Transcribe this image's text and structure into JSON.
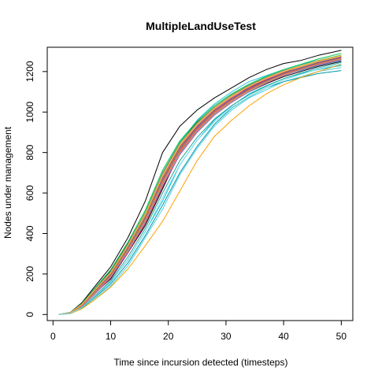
{
  "chart_data": {
    "type": "line",
    "title": "MultipleLandUseTest",
    "xlabel": "Time since incursion detected (timesteps)",
    "ylabel": "Nodes under management",
    "xlim": [
      -1,
      52
    ],
    "ylim": [
      -30,
      1320
    ],
    "x_ticks": [
      0,
      10,
      20,
      30,
      40,
      50
    ],
    "y_ticks": [
      0,
      200,
      400,
      600,
      800,
      1000,
      1200
    ],
    "x_tick_labels": [
      "0",
      "10",
      "20",
      "30",
      "40",
      "50"
    ],
    "y_tick_labels": [
      "0",
      "200",
      "400",
      "600",
      "800",
      "1000",
      "1200"
    ],
    "grid": false,
    "legend": "none",
    "x": [
      1,
      3,
      5,
      7,
      10,
      13,
      16,
      19,
      22,
      25,
      28,
      31,
      34,
      37,
      40,
      43,
      46,
      50
    ],
    "series": [
      {
        "color": "#000000",
        "values": [
          0,
          8,
          50,
          105,
          195,
          330,
          480,
          680,
          850,
          950,
          1020,
          1080,
          1120,
          1165,
          1200,
          1215,
          1235,
          1260
        ]
      },
      {
        "color": "#000000",
        "values": [
          0,
          9,
          55,
          120,
          215,
          350,
          500,
          690,
          840,
          930,
          1000,
          1060,
          1110,
          1150,
          1185,
          1215,
          1245,
          1275
        ]
      },
      {
        "color": "#000000",
        "values": [
          0,
          10,
          58,
          130,
          235,
          380,
          560,
          800,
          930,
          1010,
          1070,
          1120,
          1170,
          1210,
          1240,
          1255,
          1280,
          1305
        ]
      },
      {
        "color": "#000000",
        "values": [
          0,
          6,
          42,
          100,
          175,
          305,
          440,
          620,
          800,
          910,
          990,
          1050,
          1100,
          1140,
          1175,
          1200,
          1225,
          1250
        ]
      },
      {
        "color": "#00bcd4",
        "values": [
          0,
          5,
          35,
          80,
          160,
          270,
          410,
          560,
          740,
          860,
          960,
          1030,
          1090,
          1130,
          1165,
          1190,
          1210,
          1230
        ]
      },
      {
        "color": "#26c6da",
        "values": [
          0,
          8,
          48,
          110,
          200,
          330,
          490,
          700,
          850,
          960,
          1040,
          1100,
          1150,
          1180,
          1210,
          1235,
          1255,
          1280
        ]
      },
      {
        "color": "#4dd0e1",
        "values": [
          0,
          4,
          30,
          70,
          140,
          240,
          380,
          520,
          690,
          820,
          930,
          1010,
          1070,
          1110,
          1150,
          1175,
          1200,
          1220
        ]
      },
      {
        "color": "#29b6f6",
        "values": [
          0,
          7,
          45,
          105,
          195,
          325,
          475,
          660,
          815,
          920,
          1000,
          1060,
          1110,
          1150,
          1185,
          1205,
          1230,
          1255
        ]
      },
      {
        "color": "#0097a7",
        "values": [
          0,
          5,
          32,
          78,
          150,
          255,
          390,
          540,
          700,
          830,
          940,
          1020,
          1075,
          1120,
          1150,
          1170,
          1190,
          1205
        ]
      },
      {
        "color": "#ffa000",
        "values": [
          0,
          4,
          28,
          68,
          135,
          225,
          340,
          460,
          610,
          760,
          880,
          960,
          1030,
          1090,
          1135,
          1170,
          1200,
          1235
        ]
      },
      {
        "color": "#e91e63",
        "values": [
          0,
          7,
          48,
          110,
          205,
          340,
          490,
          680,
          830,
          930,
          1010,
          1070,
          1120,
          1160,
          1195,
          1220,
          1240,
          1265
        ]
      },
      {
        "color": "#ff00ff",
        "values": [
          0,
          8,
          50,
          115,
          210,
          345,
          500,
          690,
          835,
          935,
          1015,
          1075,
          1125,
          1165,
          1200,
          1225,
          1250,
          1275
        ]
      },
      {
        "color": "#ff4081",
        "values": [
          0,
          6,
          44,
          102,
          190,
          318,
          465,
          650,
          805,
          910,
          995,
          1055,
          1105,
          1148,
          1185,
          1210,
          1235,
          1260
        ]
      },
      {
        "color": "#c2185b",
        "values": [
          0,
          7,
          46,
          106,
          198,
          330,
          478,
          665,
          818,
          922,
          1003,
          1063,
          1113,
          1155,
          1190,
          1216,
          1242,
          1268
        ]
      },
      {
        "color": "#ff1744",
        "values": [
          0,
          6,
          40,
          95,
          180,
          305,
          450,
          630,
          790,
          900,
          985,
          1048,
          1100,
          1143,
          1180,
          1207,
          1232,
          1258
        ]
      },
      {
        "color": "#4caf50",
        "values": [
          0,
          8,
          52,
          118,
          212,
          348,
          505,
          700,
          848,
          948,
          1025,
          1085,
          1133,
          1172,
          1205,
          1230,
          1255,
          1282
        ]
      },
      {
        "color": "#66bb6a",
        "values": [
          0,
          7,
          47,
          108,
          200,
          335,
          485,
          672,
          825,
          928,
          1008,
          1068,
          1118,
          1158,
          1193,
          1220,
          1246,
          1272
        ]
      },
      {
        "color": "#00c853",
        "values": [
          0,
          9,
          54,
          122,
          220,
          358,
          515,
          712,
          858,
          955,
          1032,
          1090,
          1138,
          1177,
          1210,
          1236,
          1262,
          1290
        ]
      },
      {
        "color": "#9ccc65",
        "values": [
          0,
          6,
          43,
          100,
          187,
          315,
          460,
          642,
          798,
          905,
          990,
          1052,
          1103,
          1146,
          1183,
          1210,
          1236,
          1262
        ]
      },
      {
        "color": "#3f51b5",
        "values": [
          0,
          7,
          45,
          104,
          194,
          326,
          474,
          660,
          812,
          918,
          1000,
          1061,
          1111,
          1152,
          1188,
          1214,
          1240,
          1266
        ]
      },
      {
        "color": "#2962ff",
        "values": [
          0,
          8,
          49,
          112,
          206,
          342,
          495,
          685,
          836,
          938,
          1018,
          1078,
          1127,
          1167,
          1201,
          1227,
          1252,
          1278
        ]
      },
      {
        "color": "#536dfe",
        "values": [
          0,
          6,
          41,
          97,
          183,
          310,
          455,
          636,
          793,
          902,
          987,
          1050,
          1101,
          1144,
          1181,
          1208,
          1234,
          1260
        ]
      },
      {
        "color": "#9c27b0",
        "values": [
          0,
          7,
          47,
          107,
          199,
          332,
          482,
          670,
          822,
          925,
          1006,
          1066,
          1116,
          1157,
          1192,
          1218,
          1244,
          1270
        ]
      },
      {
        "color": "#ab47bc",
        "values": [
          0,
          8,
          51,
          116,
          209,
          346,
          500,
          693,
          842,
          943,
          1022,
          1082,
          1130,
          1170,
          1204,
          1229,
          1254,
          1280
        ]
      },
      {
        "color": "#ffd600",
        "values": [
          0,
          7,
          46,
          106,
          197,
          329,
          478,
          664,
          817,
          921,
          1002,
          1062,
          1112,
          1153,
          1189,
          1215,
          1241,
          1267
        ]
      },
      {
        "color": "#cddc39",
        "values": [
          0,
          8,
          50,
          114,
          207,
          343,
          497,
          688,
          839,
          940,
          1020,
          1080,
          1128,
          1168,
          1202,
          1228,
          1253,
          1279
        ]
      },
      {
        "color": "#9e9e9e",
        "values": [
          0,
          6,
          42,
          99,
          186,
          313,
          458,
          640,
          796,
          904,
          989,
          1051,
          1102,
          1145,
          1182,
          1209,
          1235,
          1261
        ]
      },
      {
        "color": "#757575",
        "values": [
          0,
          7,
          45,
          105,
          196,
          328,
          476,
          662,
          815,
          920,
          1001,
          1062,
          1112,
          1153,
          1189,
          1215,
          1241,
          1267
        ]
      },
      {
        "color": "#ff7043",
        "values": [
          0,
          6,
          43,
          101,
          189,
          320,
          468,
          653,
          808,
          914,
          997,
          1058,
          1108,
          1150,
          1186,
          1212,
          1238,
          1264
        ]
      },
      {
        "color": "#ffab40",
        "values": [
          0,
          8,
          49,
          113,
          205,
          340,
          492,
          682,
          834,
          936,
          1016,
          1076,
          1125,
          1165,
          1199,
          1225,
          1250,
          1276
        ]
      },
      {
        "color": "#26a69a",
        "values": [
          0,
          5,
          36,
          86,
          166,
          285,
          425,
          600,
          760,
          875,
          965,
          1032,
          1085,
          1128,
          1165,
          1192,
          1218,
          1245
        ]
      },
      {
        "color": "#80deea",
        "values": [
          0,
          5,
          34,
          82,
          158,
          272,
          408,
          578,
          740,
          860,
          952,
          1022,
          1076,
          1120,
          1158,
          1186,
          1212,
          1238
        ]
      }
    ]
  }
}
